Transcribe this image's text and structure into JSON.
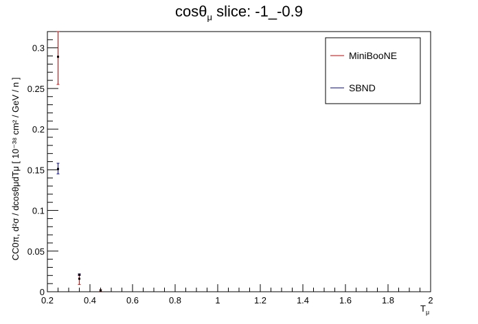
{
  "chart_data": {
    "type": "scatter",
    "title_main": "cosθ",
    "title_sub": "μ",
    "title_rest": " slice: -1_-0.9",
    "xlabel_main": "T",
    "xlabel_sub": "μ",
    "ylabel": "CC0π, d²σ / dcosθμdTμ [ 10⁻³⁸ cm² / GeV / n ]",
    "xlim": [
      0.2,
      2.0
    ],
    "ylim": [
      0,
      0.32
    ],
    "xticks": [
      0.2,
      0.4,
      0.6,
      0.8,
      1.0,
      1.2,
      1.4,
      1.6,
      1.8,
      2.0
    ],
    "xtick_labels": [
      "0.2",
      "0.4",
      "0.6",
      "0.8",
      "1",
      "1.2",
      "1.4",
      "1.6",
      "1.8",
      "2"
    ],
    "yticks": [
      0,
      0.05,
      0.1,
      0.15,
      0.2,
      0.25,
      0.3
    ],
    "ytick_labels": [
      "0",
      "0.05",
      "0.1",
      "0.15",
      "0.2",
      "0.25",
      "0.3"
    ],
    "legend_position": "top-right",
    "series": [
      {
        "name": "MiniBooNE",
        "color": "#cc0000",
        "points": [
          {
            "x": 0.25,
            "y": 0.289,
            "ylo": 0.255,
            "yhi": 0.32
          },
          {
            "x": 0.35,
            "y": 0.016,
            "ylo": 0.009,
            "yhi": 0.021
          },
          {
            "x": 0.45,
            "y": 0.0015,
            "ylo": 0.0005,
            "yhi": 0.0025
          }
        ]
      },
      {
        "name": "SBND",
        "color": "#000099",
        "points": [
          {
            "x": 0.25,
            "y": 0.151,
            "ylo": 0.145,
            "yhi": 0.158
          },
          {
            "x": 0.35,
            "y": 0.021,
            "ylo": 0.02,
            "yhi": 0.022
          }
        ]
      }
    ]
  }
}
